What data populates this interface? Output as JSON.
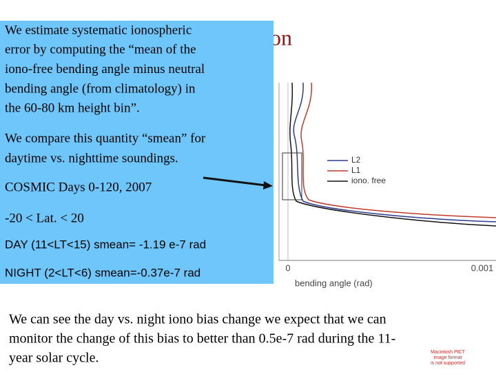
{
  "slide": {
    "title_fragment": "on",
    "box": {
      "paragraph1": [
        "We estimate systematic ionospheric",
        "error by computing the “mean of the",
        "iono-free bending angle minus neutral",
        "bending angle (from climatology) in",
        "the 60-80 km height bin”."
      ],
      "paragraph2": [
        "We compare this quantity “smean” for",
        "daytime vs. nighttime soundings."
      ],
      "dataset": "COSMIC Days 0-120, 2007",
      "latitude": "-20 < Lat. < 20",
      "day": "DAY (11<LT<15) smean= -1.19 e-7 rad",
      "night": "NIGHT (2<LT<6) smean=-0.37e-7 rad"
    },
    "figure": {
      "legend": [
        "L2",
        "L1",
        "iono. free"
      ],
      "x_tick_0": "0",
      "x_tick_1": "0.001",
      "x_label": "bending angle (rad)"
    },
    "conclusion": [
      "We can see the day vs. night iono bias change we expect that we can",
      "monitor the change of this bias to better than  0.5e-7 rad during the 11-",
      "year solar cycle."
    ],
    "pict_notice": [
      "Macintosh PICT",
      "image format",
      "is not supported"
    ]
  }
}
